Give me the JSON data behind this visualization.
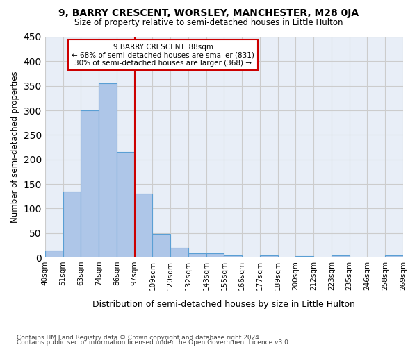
{
  "title1": "9, BARRY CRESCENT, WORSLEY, MANCHESTER, M28 0JA",
  "title2": "Size of property relative to semi-detached houses in Little Hulton",
  "xlabel": "Distribution of semi-detached houses by size in Little Hulton",
  "ylabel": "Number of semi-detached properties",
  "footnote1": "Contains HM Land Registry data © Crown copyright and database right 2024.",
  "footnote2": "Contains public sector information licensed under the Open Government Licence v3.0.",
  "bin_labels": [
    "40sqm",
    "51sqm",
    "63sqm",
    "74sqm",
    "86sqm",
    "97sqm",
    "109sqm",
    "120sqm",
    "132sqm",
    "143sqm",
    "155sqm",
    "166sqm",
    "177sqm",
    "189sqm",
    "200sqm",
    "212sqm",
    "223sqm",
    "235sqm",
    "246sqm",
    "258sqm",
    "269sqm"
  ],
  "bar_heights": [
    15,
    135,
    300,
    355,
    215,
    130,
    48,
    20,
    8,
    8,
    5,
    0,
    5,
    0,
    3,
    0,
    5,
    0,
    0,
    5
  ],
  "bar_color": "#aec6e8",
  "bar_edgecolor": "#5a9fd4",
  "property_label": "9 BARRY CRESCENT: 88sqm",
  "pct_smaller": 68,
  "n_smaller": 831,
  "pct_larger": 30,
  "n_larger": 368,
  "vline_color": "#cc0000",
  "annotation_box_edgecolor": "#cc0000",
  "background_color": "#ffffff",
  "grid_color": "#cccccc",
  "ax_facecolor": "#e8eef7",
  "ylim": [
    0,
    450
  ],
  "yticks": [
    0,
    50,
    100,
    150,
    200,
    250,
    300,
    350,
    400,
    450
  ],
  "vline_x": 4.5
}
